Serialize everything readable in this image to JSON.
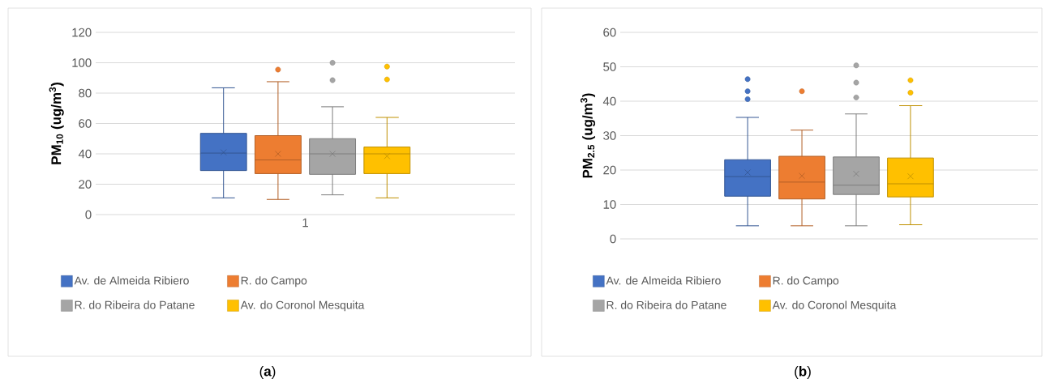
{
  "chart_data": [
    {
      "type": "box",
      "categories": [
        "1"
      ],
      "ylabel": "PM$_{10}$ (ug/m$^{3}$)",
      "ylim": [
        0,
        120
      ],
      "yticks": [
        0,
        20,
        40,
        60,
        80,
        100,
        120
      ],
      "grid": "y",
      "legend": "bottom",
      "annotations": [
        "(**a**)"
      ],
      "series": [
        {
          "name": "Av. de Almeida Ribiero",
          "color": "#4472c4",
          "boxes": [
            {
              "low": 11,
              "q1": 29,
              "median": 40.5,
              "q3": 53.5,
              "high": 83.5,
              "mean": 41
            }
          ]
        },
        {
          "name": "R. do Campo",
          "color": "#ed7d31",
          "boxes": [
            {
              "low": 10,
              "q1": 27,
              "median": 36,
              "q3": 52,
              "high": 87.5,
              "mean": 40,
              "outliers": [
                95.5
              ]
            }
          ]
        },
        {
          "name": "R. do Ribeira do Patane",
          "color": "#a5a5a5",
          "boxes": [
            {
              "low": 13,
              "q1": 26.5,
              "median": 40,
              "q3": 50,
              "high": 71,
              "mean": 40,
              "outliers": [
                100,
                88.5
              ]
            }
          ]
        },
        {
          "name": "Av. do Coronol Mesquita",
          "color": "#ffc000",
          "boxes": [
            {
              "low": 11,
              "q1": 27,
              "median": 40,
              "q3": 44.5,
              "high": 64,
              "mean": 38.5,
              "outliers": [
                97.5,
                89
              ]
            }
          ]
        }
      ]
    },
    {
      "type": "box",
      "categories": [
        null
      ],
      "ylabel": "PM$_{2.5}$ (ug/m$^{3}$)",
      "ylim": [
        0,
        60
      ],
      "yticks": [
        0,
        10,
        20,
        30,
        40,
        50,
        60
      ],
      "grid": "y",
      "legend": "bottom",
      "annotations": [
        "(**b**)"
      ],
      "series": [
        {
          "name": "Av. de Almeida Ribiero",
          "color": "#4472c4",
          "boxes": [
            {
              "low": 3.8,
              "q1": 12.4,
              "median": 18.1,
              "q3": 23,
              "high": 35.3,
              "mean": 19.3,
              "outliers": [
                46.4,
                42.9,
                40.6
              ]
            }
          ]
        },
        {
          "name": "R. do Campo",
          "color": "#ed7d31",
          "boxes": [
            {
              "low": 3.8,
              "q1": 11.6,
              "median": 16.5,
              "q3": 24,
              "high": 31.6,
              "mean": 18.3,
              "outliers": [
                42.9
              ]
            }
          ]
        },
        {
          "name": "R. do Ribeira do Patane",
          "color": "#a5a5a5",
          "boxes": [
            {
              "low": 3.8,
              "q1": 12.9,
              "median": 15.6,
              "q3": 23.8,
              "high": 36.3,
              "mean": 18.9,
              "outliers": [
                50.4,
                45.4,
                41.1
              ]
            }
          ]
        },
        {
          "name": "Av. do Coronol Mesquita",
          "color": "#ffc000",
          "boxes": [
            {
              "low": 4.1,
              "q1": 12.2,
              "median": 16,
              "q3": 23.5,
              "high": 38.7,
              "mean": 18.2,
              "outliers": [
                46.1,
                42.5
              ]
            }
          ]
        }
      ]
    }
  ]
}
